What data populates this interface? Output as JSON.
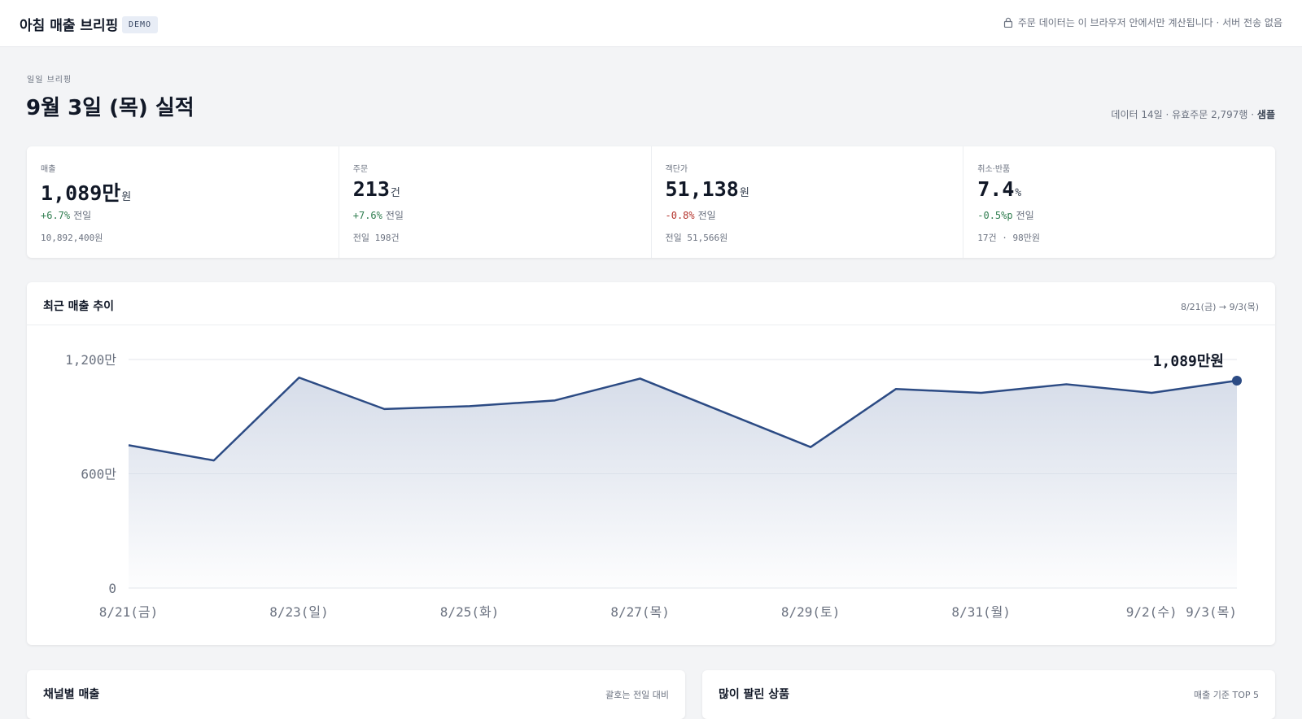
{
  "header": {
    "app_title": "아침 매출 브리핑",
    "badge": "DEMO",
    "privacy_note": "주문 데이터는 이 브라우저 안에서만 계산됩니다 · 서버 전송 없음",
    "privacy_icon": "lock-icon"
  },
  "page": {
    "eyebrow": "일일 브리핑",
    "title": "9월 3일 (목) 실적",
    "meta_prefix": "데이터 14일 · 유효주문 2,797행 · ",
    "meta_sample": "샘플"
  },
  "kpis": [
    {
      "label": "매출",
      "value": "1,089만",
      "unit": "원",
      "delta": "+6.7%",
      "delta_dir": "up",
      "compare": "전일",
      "sub": "10,892,400원"
    },
    {
      "label": "주문",
      "value": "213",
      "unit": "건",
      "delta": "+7.6%",
      "delta_dir": "up",
      "compare": "전일",
      "sub": "전일 198건"
    },
    {
      "label": "객단가",
      "value": "51,138",
      "unit": "원",
      "delta": "-0.8%",
      "delta_dir": "down",
      "compare": "전일",
      "sub": "전일 51,566원"
    },
    {
      "label": "취소·반품",
      "value": "7.4",
      "unit": "%",
      "delta": "-0.5%p",
      "delta_dir": "down",
      "compare": "전일",
      "sub": "17건 · 98만원"
    }
  ],
  "trend": {
    "title": "최근 매출 추이",
    "range_note": "8/21(금) → 9/3(목)",
    "last_label": "1,089만원"
  },
  "chart_data": {
    "type": "area",
    "x": [
      "8/21(금)",
      "8/22(토)",
      "8/23(일)",
      "8/24(월)",
      "8/25(화)",
      "8/26(수)",
      "8/27(목)",
      "8/28(금)",
      "8/29(토)",
      "8/30(일)",
      "8/31(월)",
      "9/1(화)",
      "9/2(수)",
      "9/3(목)"
    ],
    "x_tick_labels": [
      "8/21(금)",
      "8/23(일)",
      "8/25(화)",
      "8/27(목)",
      "8/29(토)",
      "8/31(월)",
      "9/2(수)",
      "9/3(목)"
    ],
    "values": [
      750,
      670,
      1105,
      940,
      955,
      985,
      1100,
      920,
      740,
      1045,
      1025,
      1070,
      1025,
      1089
    ],
    "y_unit": "만원",
    "y_ticks": [
      "0",
      "600만",
      "1,200만"
    ],
    "ylim": [
      0,
      1200
    ],
    "grid": true,
    "line_color": "#2c4b84",
    "fill_color": "#d4dbe8",
    "highlight_last": true
  },
  "channel": {
    "title": "채널별 매출",
    "note": "괄호는 전일 대비"
  },
  "top_products": {
    "title": "많이 팔린 상품",
    "note": "매출 기준 TOP 5"
  }
}
